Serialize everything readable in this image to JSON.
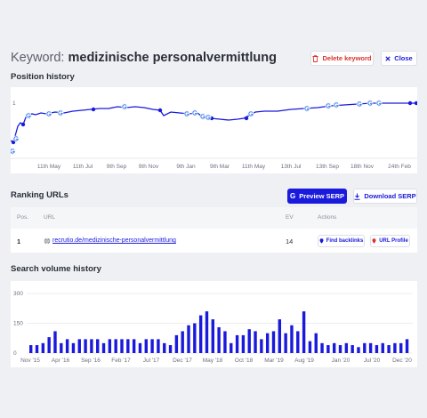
{
  "header": {
    "title_prefix": "Keyword:",
    "keyword": "medizinische personalvermittlung",
    "delete_label": "Delete keyword",
    "close_label": "Close"
  },
  "position_history": {
    "heading": "Position history",
    "y_tick": "1",
    "x_labels": [
      "11th May",
      "11th Jul",
      "9th Sep",
      "9th Nov",
      "9th Jan",
      "9th Mar",
      "11th May",
      "13th Jul",
      "13th Sep",
      "18th Nov",
      "24th Feb"
    ]
  },
  "ranking": {
    "heading": "Ranking URLs",
    "preview_label": "Preview SERP",
    "download_label": "Download SERP",
    "columns": {
      "pos": "Pos.",
      "url": "URL",
      "ev": "EV",
      "actions": "Actions"
    },
    "rows": [
      {
        "pos": "1",
        "url": "recrutio.de/medizinische-personalvermittlung",
        "ev": "14",
        "backlinks_label": "Find backlinks",
        "profile_label": "URL Profile"
      }
    ]
  },
  "search_volume": {
    "heading": "Search volume history",
    "y_labels": [
      "300",
      "150",
      "0"
    ],
    "x_labels": [
      "Nov '15",
      "Apr '16",
      "Sep '16",
      "Feb '17",
      "Jul '17",
      "Dec '17",
      "May '18",
      "Oct '18",
      "Mar '19",
      "Aug '19",
      "Jan '20",
      "Jul '20",
      "Dec '20"
    ]
  },
  "chart_data": [
    {
      "type": "line",
      "y_scale": "rank (lower is better)",
      "y_tick_labels": [
        "1"
      ],
      "x_tick_labels": [
        "11th May",
        "11th Jul",
        "9th Sep",
        "9th Nov",
        "9th Jan",
        "9th Mar",
        "11th May",
        "13th Jul",
        "13th Sep",
        "18th Nov",
        "24th Feb"
      ]
    },
    {
      "type": "bar",
      "ylim": [
        0,
        300
      ],
      "y_ticks": [
        0,
        150,
        300
      ],
      "x_tick_labels": [
        "Nov '15",
        "Apr '16",
        "Sep '16",
        "Feb '17",
        "Jul '17",
        "Dec '17",
        "May '18",
        "Oct '18",
        "Mar '19",
        "Aug '19",
        "Jan '20",
        "Jul '20",
        "Dec '20"
      ],
      "values": [
        40,
        40,
        50,
        80,
        110,
        50,
        70,
        50,
        70,
        70,
        70,
        70,
        50,
        70,
        70,
        70,
        70,
        70,
        50,
        70,
        70,
        70,
        50,
        40,
        90,
        110,
        140,
        150,
        190,
        210,
        170,
        130,
        110,
        50,
        90,
        90,
        120,
        110,
        70,
        100,
        110,
        170,
        100,
        140,
        110,
        210,
        60,
        100,
        50,
        40,
        50,
        40,
        50,
        40,
        30,
        50,
        50,
        40,
        50,
        40,
        50,
        50,
        70
      ]
    }
  ]
}
